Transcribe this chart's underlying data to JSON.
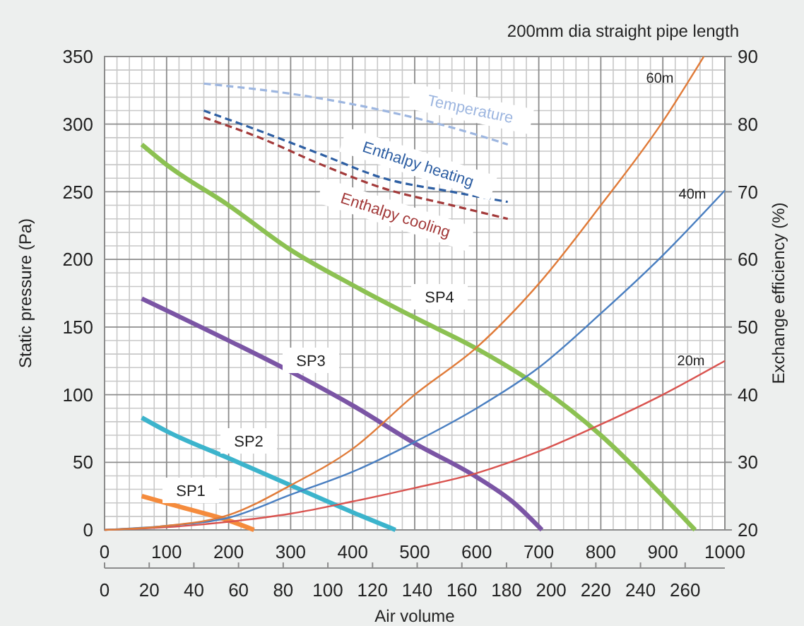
{
  "chart_data": {
    "type": "line",
    "title": "200mm dia straight pipe length",
    "xlabel": "Air volume",
    "ylabel": "Static pressure (Pa)",
    "y2label": "Exchange efficiency (%)",
    "xlim": [
      0,
      1000
    ],
    "xticks": [
      0,
      100,
      200,
      300,
      400,
      500,
      600,
      700,
      800,
      900,
      1000
    ],
    "x2lim": [
      0,
      277.78
    ],
    "x2ticks": [
      0,
      20,
      40,
      60,
      80,
      100,
      120,
      140,
      160,
      180,
      200,
      220,
      240,
      260
    ],
    "ylim": [
      0,
      350
    ],
    "yticks": [
      0,
      50,
      100,
      150,
      200,
      250,
      300,
      350
    ],
    "y2lim": [
      20,
      90
    ],
    "y2ticks": [
      20,
      30,
      40,
      50,
      60,
      70,
      80,
      90
    ],
    "grid": true,
    "marker": "none",
    "series": [
      {
        "name": "SP1",
        "color": "#f58b3c",
        "x": [
          60,
          130,
          200,
          241
        ],
        "values": [
          25,
          16,
          7,
          0
        ]
      },
      {
        "name": "SP2",
        "color": "#3cb4cc",
        "x": [
          60,
          100,
          200,
          300,
          400,
          469
        ],
        "values": [
          83,
          73,
          53,
          33,
          13,
          0
        ]
      },
      {
        "name": "SP3",
        "color": "#7b55a5",
        "x": [
          60,
          200,
          300,
          400,
          500,
          600,
          660,
          705
        ],
        "values": [
          171,
          140,
          117,
          92,
          64,
          39,
          20,
          0
        ]
      },
      {
        "name": "SP4",
        "color": "#8cc152",
        "x": [
          60,
          100,
          200,
          300,
          400,
          500,
          600,
          700,
          800,
          900,
          952
        ],
        "values": [
          285,
          270,
          240,
          207,
          181,
          157,
          134,
          106,
          70,
          25,
          0
        ]
      },
      {
        "name": "20m",
        "color": "#d9534f",
        "x": [
          0,
          100,
          200,
          300,
          400,
          500,
          600,
          700,
          800,
          900,
          1000
        ],
        "values": [
          0,
          2,
          6,
          12,
          21,
          31,
          42,
          58,
          78,
          100,
          125
        ]
      },
      {
        "name": "40m",
        "color": "#4a7fc1",
        "x": [
          0,
          100,
          200,
          300,
          400,
          500,
          600,
          700,
          800,
          900,
          1000
        ],
        "values": [
          0,
          3,
          9,
          26,
          43,
          65,
          90,
          120,
          160,
          203,
          251
        ]
      },
      {
        "name": "60m",
        "color": "#e07b39",
        "x": [
          0,
          100,
          200,
          300,
          400,
          500,
          600,
          700,
          800,
          900,
          966
        ],
        "values": [
          0,
          3,
          11,
          33,
          60,
          100,
          135,
          182,
          240,
          302,
          350
        ]
      },
      {
        "name": "Temperature",
        "color": "#9db6e0",
        "axis": "y2",
        "line_style": "dashed",
        "x": [
          160,
          300,
          450,
          560,
          650
        ],
        "values": [
          86,
          84.5,
          82,
          79.5,
          77
        ]
      },
      {
        "name": "Enthalpy heating",
        "color": "#2e5fa3",
        "axis": "y2",
        "line_style": "dashed",
        "x": [
          160,
          250,
          350,
          450,
          560,
          650
        ],
        "values": [
          82,
          79,
          75.5,
          72,
          70,
          68.5
        ]
      },
      {
        "name": "Enthalpy cooling",
        "color": "#a33a3a",
        "axis": "y2",
        "line_style": "dashed",
        "x": [
          160,
          250,
          350,
          450,
          560,
          650
        ],
        "values": [
          81,
          78,
          74,
          70.5,
          68,
          66
        ]
      }
    ]
  }
}
